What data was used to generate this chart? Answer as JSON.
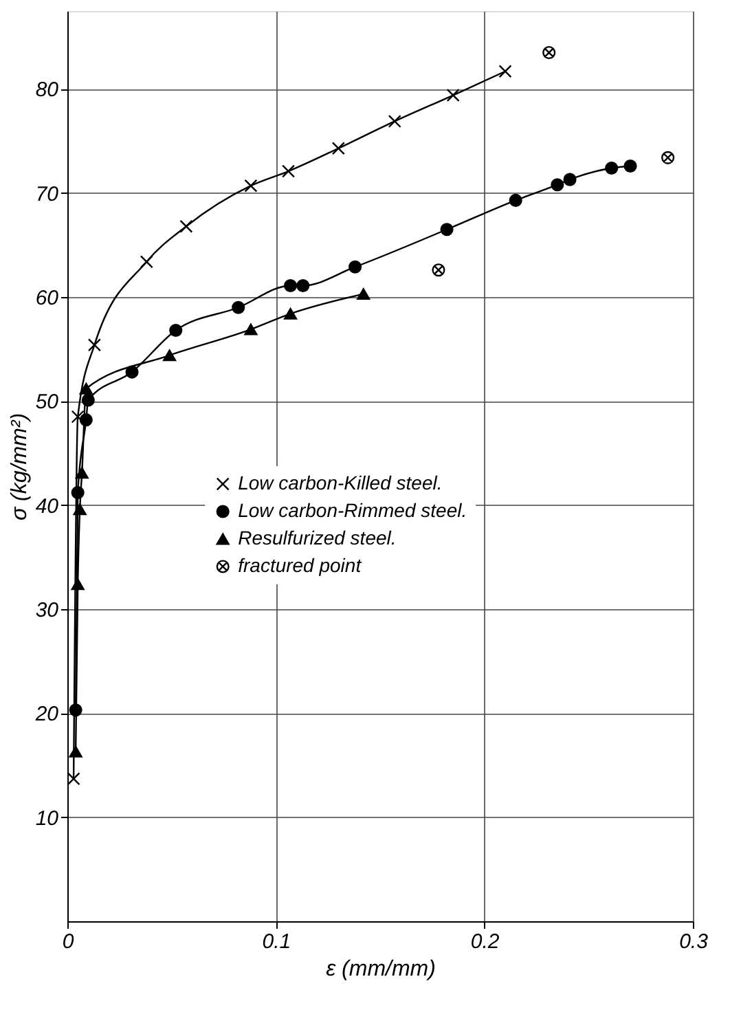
{
  "chart_data": {
    "type": "line",
    "xlabel": "ε (mm/mm)",
    "ylabel": "σ (kg/mm²)",
    "xlim": [
      0,
      0.3
    ],
    "ylim": [
      0,
      87.5
    ],
    "xticks": [
      0,
      0.1,
      0.2,
      0.3
    ],
    "yticks": [
      10,
      20,
      30,
      40,
      50,
      60,
      70,
      80
    ],
    "grid": true,
    "legend": "center",
    "line_style": "solid",
    "series": [
      {
        "name": "Low carbon-Killed steel.",
        "color": "#000000",
        "marker": "cross",
        "x": [
          0.003,
          0.005,
          0.013,
          0.038,
          0.057,
          0.088,
          0.106,
          0.13,
          0.157,
          0.185,
          0.21
        ],
        "values": [
          13.7,
          48.5,
          55.4,
          63.4,
          66.8,
          70.7,
          72.1,
          74.3,
          76.9,
          79.4,
          81.7
        ]
      },
      {
        "name": "Low carbon-Rimmed steel.",
        "color": "#000000",
        "marker": "circle",
        "x": [
          0.004,
          0.005,
          0.009,
          0.01,
          0.031,
          0.052,
          0.082,
          0.107,
          0.113,
          0.138,
          0.182,
          0.215,
          0.235,
          0.241,
          0.261,
          0.27
        ],
        "values": [
          20.3,
          41.2,
          48.2,
          50.1,
          52.8,
          56.8,
          59.0,
          61.1,
          61.1,
          62.9,
          66.5,
          69.3,
          70.8,
          71.3,
          72.4,
          72.6
        ]
      },
      {
        "name": "Resulfurized steel.",
        "color": "#000000",
        "marker": "triangle",
        "x": [
          0.004,
          0.005,
          0.006,
          0.007,
          0.009,
          0.049,
          0.088,
          0.107,
          0.142
        ],
        "values": [
          16.3,
          32.4,
          39.6,
          43.1,
          51.2,
          54.4,
          56.9,
          58.4,
          60.3
        ]
      },
      {
        "name": "fractured point",
        "type": "scatter",
        "color": "#000000",
        "marker": "cross",
        "x": [
          0.231,
          0.288,
          0.178
        ],
        "values": [
          83.5,
          73.4,
          62.6
        ]
      }
    ]
  }
}
